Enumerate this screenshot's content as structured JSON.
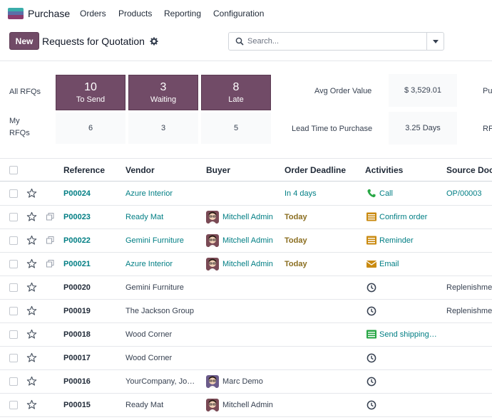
{
  "app": {
    "name": "Purchase",
    "menu": [
      "Orders",
      "Products",
      "Reporting",
      "Configuration"
    ]
  },
  "control_panel": {
    "new_label": "New",
    "title": "Requests for Quotation",
    "search_placeholder": "Search..."
  },
  "dashboard": {
    "all_rfqs_label": "All RFQs",
    "my_rfqs_label_1": "My",
    "my_rfqs_label_2": "RFQs",
    "tiles": [
      {
        "count": "10",
        "label": "To Send"
      },
      {
        "count": "3",
        "label": "Waiting"
      },
      {
        "count": "8",
        "label": "Late"
      }
    ],
    "my_counts": [
      "6",
      "3",
      "5"
    ],
    "avg_order_label": "Avg Order Value",
    "avg_order_value": "$ 3,529.01",
    "lead_time_label": "Lead Time to Purchase",
    "lead_time_value": "3.25 Days",
    "cut_right_1": "Pu",
    "cut_right_2": "RF"
  },
  "table": {
    "headers": {
      "reference": "Reference",
      "vendor": "Vendor",
      "buyer": "Buyer",
      "deadline": "Order Deadline",
      "activities": "Activities",
      "source": "Source Docu"
    },
    "rows": [
      {
        "ref": "P00024",
        "vendor": "Azure Interior",
        "buyer": "",
        "deadline": "In 4 days",
        "activity": "Call",
        "activity_icon": "phone-icon",
        "source": "OP/00003"
      },
      {
        "ref": "P00023",
        "vendor": "Ready Mat",
        "buyer": "Mitchell Admin",
        "deadline": "Today",
        "activity": "Confirm order",
        "activity_icon": "todo-icon",
        "source": ""
      },
      {
        "ref": "P00022",
        "vendor": "Gemini Furniture",
        "buyer": "Mitchell Admin",
        "deadline": "Today",
        "activity": "Reminder",
        "activity_icon": "todo-icon",
        "source": ""
      },
      {
        "ref": "P00021",
        "vendor": "Azure Interior",
        "buyer": "Mitchell Admin",
        "deadline": "Today",
        "activity": "Email",
        "activity_icon": "email-icon",
        "source": ""
      },
      {
        "ref": "P00020",
        "vendor": "Gemini Furniture",
        "buyer": "",
        "deadline": "",
        "activity": "",
        "activity_icon": "clock-icon",
        "source": "Replenishme"
      },
      {
        "ref": "P00019",
        "vendor": "The Jackson Group",
        "buyer": "",
        "deadline": "",
        "activity": "",
        "activity_icon": "clock-icon",
        "source": "Replenishme"
      },
      {
        "ref": "P00018",
        "vendor": "Wood Corner",
        "buyer": "",
        "deadline": "",
        "activity": "Send shipping…",
        "activity_icon": "shipping-icon",
        "source": ""
      },
      {
        "ref": "P00017",
        "vendor": "Wood Corner",
        "buyer": "",
        "deadline": "",
        "activity": "",
        "activity_icon": "clock-icon",
        "source": ""
      },
      {
        "ref": "P00016",
        "vendor": "YourCompany, Jo…",
        "buyer": "Marc Demo",
        "deadline": "",
        "activity": "",
        "activity_icon": "clock-icon",
        "source": ""
      },
      {
        "ref": "P00015",
        "vendor": "Ready Mat",
        "buyer": "Mitchell Admin",
        "deadline": "",
        "activity": "",
        "activity_icon": "clock-icon",
        "source": ""
      }
    ]
  },
  "colors": {
    "brand": "#714b67",
    "link": "#017e84",
    "today": "#8a6d1f",
    "activity_green": "#28a745",
    "activity_orange": "#e3a21a"
  }
}
